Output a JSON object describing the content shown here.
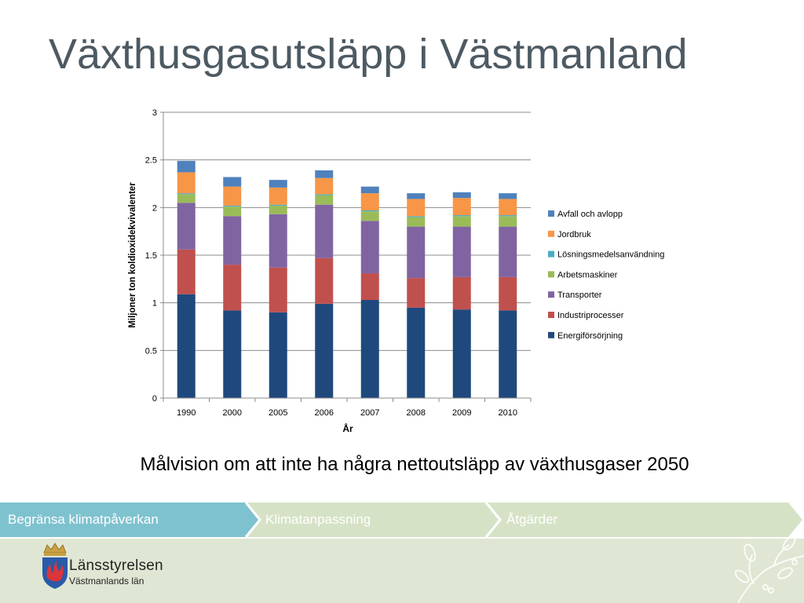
{
  "slide": {
    "title": "Växthusgasutsläpp i Västmanland",
    "subtitle": "Målvision om att inte ha några nettoutsläpp av växthusgaser 2050"
  },
  "nav": {
    "tabs": [
      {
        "label": "Begränsa klimatpåverkan",
        "color": "#7fc2cf",
        "active": true
      },
      {
        "label": "Klimatanpassning",
        "color": "#d6e2c6",
        "active": false
      },
      {
        "label": "Åtgärder",
        "color": "#d6e2c6",
        "active": false
      }
    ]
  },
  "logo": {
    "name": "Länsstyrelsen",
    "sub": "Västmanlands län",
    "icon": "crown-shield-flames-icon"
  },
  "decor": {
    "icon": "mistletoe-branch-icon"
  },
  "chart_data": {
    "type": "bar",
    "stacked": true,
    "xlabel": "År",
    "ylabel": "Miljoner ton koldioxidekvivalenter",
    "ylim": [
      0,
      3
    ],
    "yticks": [
      "0",
      "0.5",
      "1",
      "1.5",
      "2",
      "2.5",
      "3"
    ],
    "categories": [
      "1990",
      "2000",
      "2005",
      "2006",
      "2007",
      "2008",
      "2009",
      "2010"
    ],
    "grid": true,
    "legend_position": "right",
    "series": [
      {
        "name": "Energiförsörjning",
        "color": "#1f497d",
        "values": [
          1.09,
          0.92,
          0.9,
          0.99,
          1.03,
          0.95,
          0.93,
          0.92
        ]
      },
      {
        "name": "Industriprocesser",
        "color": "#c0504d",
        "values": [
          0.47,
          0.48,
          0.47,
          0.48,
          0.28,
          0.31,
          0.34,
          0.35
        ]
      },
      {
        "name": "Transporter",
        "color": "#8064a2",
        "values": [
          0.49,
          0.51,
          0.56,
          0.56,
          0.55,
          0.54,
          0.53,
          0.53
        ]
      },
      {
        "name": "Arbetsmaskiner",
        "color": "#9bbb59",
        "values": [
          0.09,
          0.1,
          0.09,
          0.1,
          0.1,
          0.1,
          0.11,
          0.11
        ]
      },
      {
        "name": "Lösningsmedelsanvändning",
        "color": "#4bacc6",
        "values": [
          0.01,
          0.01,
          0.01,
          0.01,
          0.01,
          0.01,
          0.01,
          0.01
        ]
      },
      {
        "name": "Jordbruk",
        "color": "#f79646",
        "values": [
          0.22,
          0.2,
          0.18,
          0.17,
          0.18,
          0.18,
          0.18,
          0.17
        ]
      },
      {
        "name": "Avfall och avlopp",
        "color": "#4f81bd",
        "values": [
          0.12,
          0.1,
          0.08,
          0.08,
          0.07,
          0.06,
          0.06,
          0.06
        ]
      }
    ]
  }
}
